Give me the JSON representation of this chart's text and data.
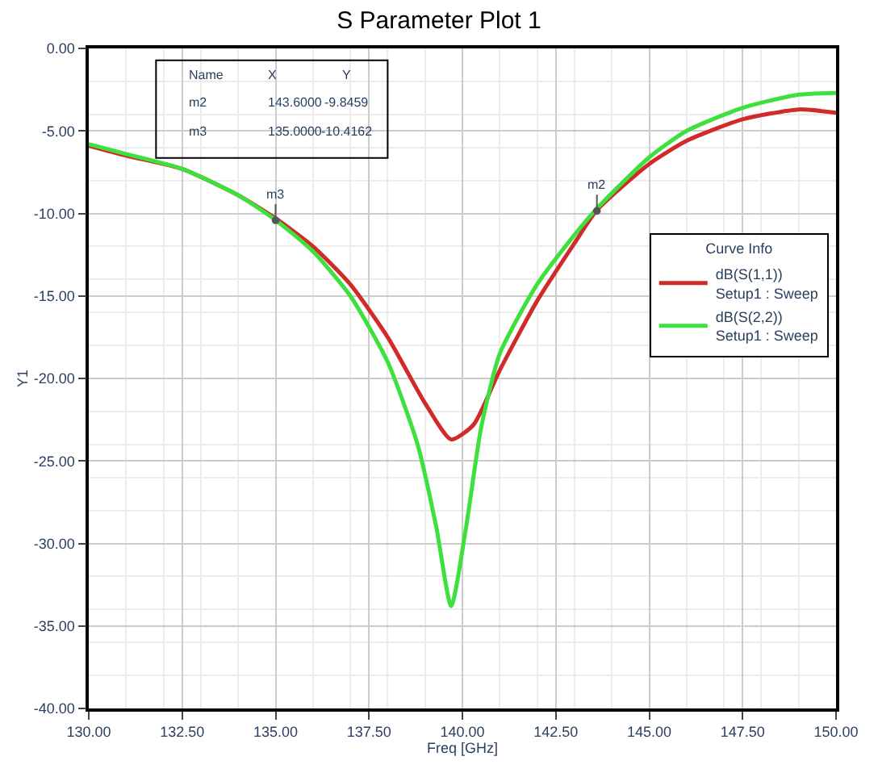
{
  "chart_data": {
    "type": "line",
    "title": "S Parameter Plot 1",
    "xlabel": "Freq [GHz]",
    "ylabel": "Y1",
    "legend_title": "Curve Info",
    "x": [
      130,
      131,
      132.5,
      134,
      135,
      136,
      137,
      138,
      138.8,
      139.3,
      139.7,
      140.1,
      140.5,
      141,
      142,
      143,
      143.6,
      145,
      146,
      147.5,
      149,
      150
    ],
    "series": [
      {
        "name": "dB(S(1,1))\nSetup1 : Sweep",
        "color": "#d02a2a",
        "x": [
          130,
          131,
          132.5,
          134,
          135,
          136,
          137,
          138,
          139,
          139.7,
          140.3,
          141,
          142,
          143,
          143.6,
          145,
          146,
          147.5,
          149,
          150
        ],
        "values": [
          -5.9,
          -6.5,
          -7.3,
          -8.9,
          -10.3,
          -12,
          -14.3,
          -17.5,
          -21.5,
          -23.7,
          -22.8,
          -19.5,
          -15.3,
          -11.8,
          -9.8,
          -7,
          -5.6,
          -4.3,
          -3.7,
          -3.9
        ]
      },
      {
        "name": "dB(S(2,2))\nSetup1 : Sweep",
        "color": "#3de03d",
        "values": [
          -5.8,
          -6.4,
          -7.3,
          -8.9,
          -10.4,
          -12.3,
          -15,
          -19,
          -24,
          -29,
          -33.8,
          -29,
          -23,
          -18.5,
          -14.3,
          -11.3,
          -9.7,
          -6.6,
          -5,
          -3.6,
          -2.8,
          -2.7
        ]
      }
    ],
    "xlim": [
      130,
      150
    ],
    "xticks": [
      {
        "value": 130,
        "label": "130.00"
      },
      {
        "value": 132.5,
        "label": "132.50"
      },
      {
        "value": 135,
        "label": "135.00"
      },
      {
        "value": 137.5,
        "label": "137.50"
      },
      {
        "value": 140,
        "label": "140.00"
      },
      {
        "value": 142.5,
        "label": "142.50"
      },
      {
        "value": 145,
        "label": "145.00"
      },
      {
        "value": 147.5,
        "label": "147.50"
      },
      {
        "value": 150,
        "label": "150.00"
      }
    ],
    "ylim": [
      -40,
      0
    ],
    "yticks": [
      {
        "value": 0,
        "label": "0.00"
      },
      {
        "value": -5,
        "label": "-5.00"
      },
      {
        "value": -10,
        "label": "-10.00"
      },
      {
        "value": -15,
        "label": "-15.00"
      },
      {
        "value": -20,
        "label": "-20.00"
      },
      {
        "value": -25,
        "label": "-25.00"
      },
      {
        "value": -30,
        "label": "-30.00"
      },
      {
        "value": -35,
        "label": "-35.00"
      },
      {
        "value": -40,
        "label": "-40.00"
      }
    ],
    "grid": true,
    "legend": "right",
    "marker": "none",
    "line_style": "solid",
    "annotations": [
      "Name",
      "X",
      "Y",
      "m2",
      "143.6000",
      "-9.8459",
      "m3",
      "135.0000",
      "-10.4162",
      {
        "text": "m2",
        "x": 143.6,
        "y": -9.8459
      },
      {
        "text": "m3",
        "x": 135,
        "y": -10.4162
      }
    ]
  }
}
